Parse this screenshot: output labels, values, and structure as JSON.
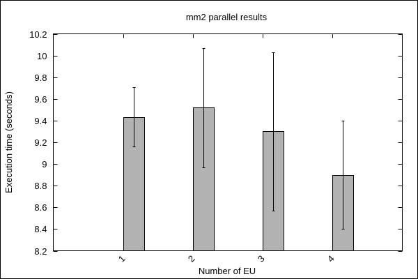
{
  "chart_data": {
    "type": "bar",
    "title": "mm2 parallel results",
    "xlabel": "Number of EU",
    "ylabel": "Execution time (seconds)",
    "categories": [
      "1",
      "2",
      "3",
      "4"
    ],
    "values": [
      9.43,
      9.52,
      9.3,
      8.9
    ],
    "error_low": [
      9.16,
      8.97,
      8.57,
      8.4
    ],
    "error_high": [
      9.71,
      10.07,
      10.03,
      9.4
    ],
    "ylim": [
      8.2,
      10.2
    ],
    "yticks": [
      "8.2",
      "8.4",
      "8.6",
      "8.8",
      "9",
      "9.2",
      "9.4",
      "9.6",
      "9.8",
      "10",
      "10.2"
    ],
    "xlim": [
      0,
      5
    ],
    "grid": false,
    "bar_color": "#b2b2b2",
    "edge_color": "#000000"
  }
}
